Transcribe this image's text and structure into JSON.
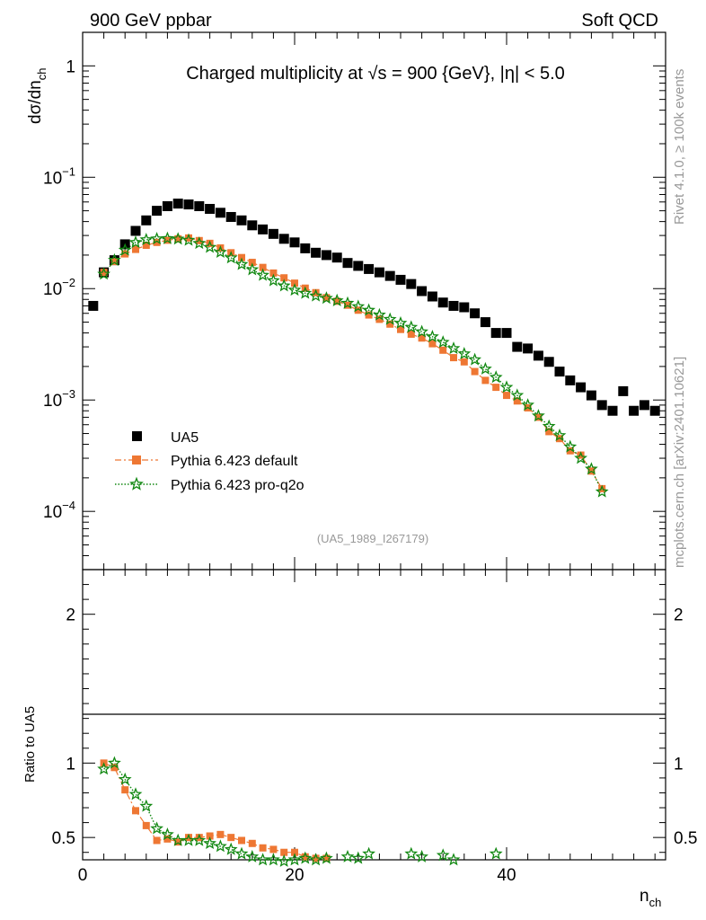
{
  "header": {
    "left": "900 GeV ppbar",
    "right": "Soft QCD"
  },
  "side_text": {
    "top": "Rivet 4.1.0, ≥ 100k events",
    "bottom": "mcplots.cern.ch [arXiv:2401.10621]"
  },
  "watermark": "(UA5_1989_I267179)",
  "chart_data": {
    "type": "scatter",
    "title": "Charged multiplicity at √s = 900 {GeV}, |η| < 5.0",
    "xlabel": "n_ch",
    "ylabel": "dσ/dn_ch",
    "ratio_ylabel": "Ratio to UA5",
    "xlim": [
      0,
      55
    ],
    "ylim": [
      3e-05,
      2
    ],
    "ratio_ylim": [
      0.35,
      2.3
    ],
    "yscale": "log",
    "x_ticks": [
      "0",
      "20",
      "40"
    ],
    "y_ticks": [
      "10^-4",
      "10^-3",
      "10^-2",
      "10^-1",
      "1"
    ],
    "ratio_ticks": [
      "0.5",
      "1",
      "2"
    ],
    "legend": [
      "UA5",
      "Pythia 6.423 default",
      "Pythia 6.423 pro-q2o"
    ],
    "colors": {
      "data": "#000000",
      "default": "#ee7733",
      "proq2o": "#118811"
    },
    "series": [
      {
        "name": "UA5",
        "x": [
          1,
          2,
          3,
          4,
          5,
          6,
          7,
          8,
          9,
          10,
          11,
          12,
          13,
          14,
          15,
          16,
          17,
          18,
          19,
          20,
          21,
          22,
          23,
          24,
          25,
          26,
          27,
          28,
          29,
          30,
          31,
          32,
          33,
          34,
          35,
          36,
          37,
          38,
          39,
          40,
          41,
          42,
          43,
          44,
          45,
          46,
          47,
          48,
          49,
          50,
          51,
          52,
          53,
          54
        ],
        "values": [
          0.007,
          0.014,
          0.018,
          0.025,
          0.033,
          0.041,
          0.05,
          0.055,
          0.058,
          0.057,
          0.055,
          0.052,
          0.048,
          0.044,
          0.041,
          0.037,
          0.034,
          0.031,
          0.028,
          0.026,
          0.023,
          0.021,
          0.02,
          0.019,
          0.017,
          0.016,
          0.015,
          0.014,
          0.013,
          0.012,
          0.011,
          0.0095,
          0.0085,
          0.0075,
          0.007,
          0.0068,
          0.006,
          0.005,
          0.004,
          0.004,
          0.003,
          0.0029,
          0.0025,
          0.0022,
          0.0018,
          0.0015,
          0.0013,
          0.0011,
          0.0009,
          0.0008,
          0.0012,
          0.0008,
          0.0009,
          0.0008
        ]
      },
      {
        "name": "Pythia 6.423 default",
        "x": [
          2,
          3,
          4,
          5,
          6,
          7,
          8,
          9,
          10,
          11,
          12,
          13,
          14,
          15,
          16,
          17,
          18,
          19,
          20,
          21,
          22,
          23,
          24,
          25,
          26,
          27,
          28,
          29,
          30,
          31,
          32,
          33,
          34,
          35,
          36,
          37,
          38,
          39,
          40,
          41,
          42,
          43,
          44,
          45,
          46,
          47,
          48,
          49
        ],
        "values": [
          0.014,
          0.0175,
          0.0205,
          0.0225,
          0.0245,
          0.026,
          0.0272,
          0.028,
          0.0285,
          0.027,
          0.0255,
          0.0232,
          0.021,
          0.019,
          0.0172,
          0.0155,
          0.0138,
          0.0125,
          0.0112,
          0.0101,
          0.0092,
          0.0083,
          0.0077,
          0.0071,
          0.0064,
          0.0058,
          0.0053,
          0.0048,
          0.0043,
          0.0039,
          0.0036,
          0.0032,
          0.0028,
          0.0024,
          0.0022,
          0.0018,
          0.0015,
          0.0013,
          0.0011,
          0.00098,
          0.00085,
          0.0007,
          0.00052,
          0.00045,
          0.00035,
          0.00032,
          0.00023,
          0.00016
        ]
      },
      {
        "name": "Pythia 6.423 pro-q2o",
        "x": [
          2,
          3,
          4,
          5,
          6,
          7,
          8,
          9,
          10,
          11,
          12,
          13,
          14,
          15,
          16,
          17,
          18,
          19,
          20,
          21,
          22,
          23,
          24,
          25,
          26,
          27,
          28,
          29,
          30,
          31,
          32,
          33,
          34,
          35,
          36,
          37,
          38,
          39,
          40,
          41,
          42,
          43,
          44,
          45,
          46,
          47,
          48,
          49
        ],
        "values": [
          0.0135,
          0.018,
          0.0222,
          0.026,
          0.0275,
          0.028,
          0.0282,
          0.0279,
          0.0272,
          0.0255,
          0.0235,
          0.0212,
          0.0189,
          0.0165,
          0.0148,
          0.0132,
          0.0118,
          0.0106,
          0.0097,
          0.0091,
          0.0086,
          0.0082,
          0.0078,
          0.0074,
          0.0069,
          0.0064,
          0.0058,
          0.0053,
          0.0049,
          0.0045,
          0.0041,
          0.0037,
          0.0033,
          0.0029,
          0.0026,
          0.0023,
          0.0019,
          0.0016,
          0.0013,
          0.0011,
          0.0009,
          0.00072,
          0.00058,
          0.00048,
          0.00038,
          0.0003,
          0.00024,
          0.00015
        ]
      }
    ],
    "ratio_series": [
      {
        "name": "Pythia 6.423 default",
        "x": [
          2,
          3,
          4,
          5,
          6,
          7,
          8,
          9,
          10,
          11,
          12,
          13,
          14,
          15,
          16,
          17,
          18,
          19,
          20,
          21,
          22,
          23
        ],
        "values": [
          1.0,
          0.97,
          0.82,
          0.68,
          0.58,
          0.48,
          0.49,
          0.47,
          0.5,
          0.5,
          0.51,
          0.52,
          0.5,
          0.48,
          0.46,
          0.43,
          0.42,
          0.4,
          0.4,
          0.37,
          0.36,
          0.36
        ]
      },
      {
        "name": "Pythia 6.423 pro-q2o",
        "x": [
          2,
          3,
          4,
          5,
          6,
          7,
          8,
          9,
          10,
          11,
          12,
          13,
          14,
          15,
          16,
          17,
          18,
          19,
          20,
          21,
          22,
          23,
          25,
          26,
          27,
          31,
          32,
          34,
          35,
          39
        ],
        "values": [
          0.96,
          1.0,
          0.89,
          0.79,
          0.71,
          0.56,
          0.52,
          0.48,
          0.48,
          0.48,
          0.46,
          0.44,
          0.42,
          0.39,
          0.37,
          0.35,
          0.35,
          0.34,
          0.35,
          0.36,
          0.35,
          0.36,
          0.37,
          0.36,
          0.39,
          0.39,
          0.37,
          0.38,
          0.35,
          0.39
        ]
      }
    ]
  }
}
